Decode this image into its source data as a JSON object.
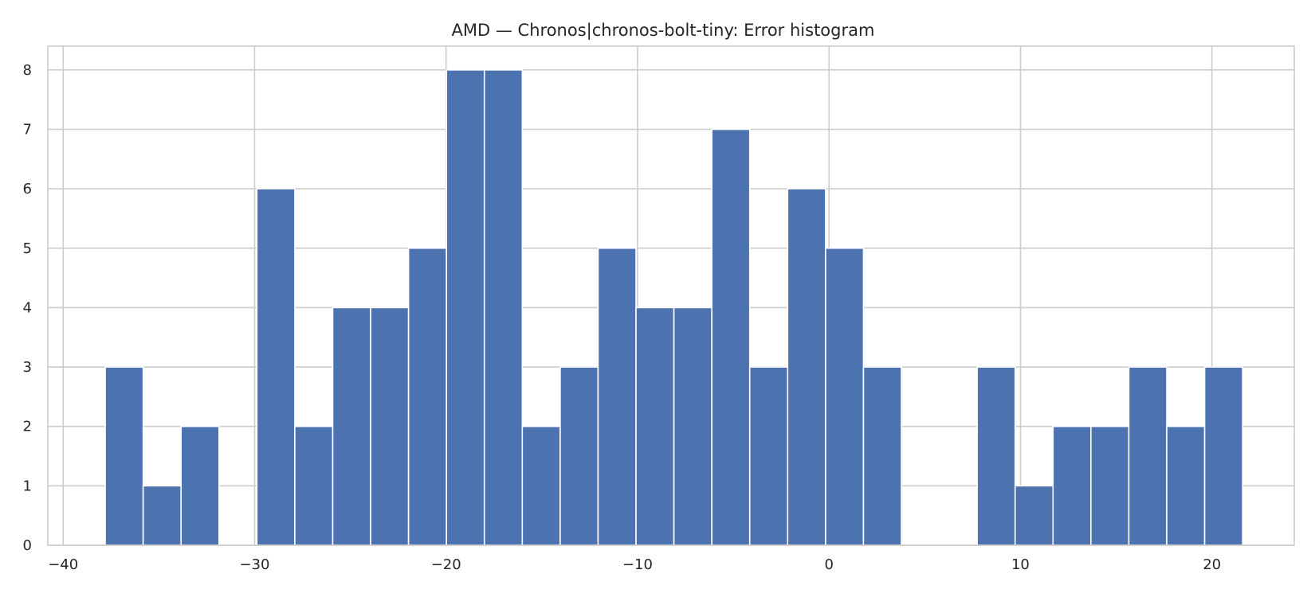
{
  "chart_data": {
    "type": "bar",
    "title": "AMD — Chronos|chronos-bolt-tiny: Error histogram",
    "xlabel": "",
    "ylabel": "",
    "xlim": [
      -40.8,
      24.3
    ],
    "ylim": [
      0,
      8.4
    ],
    "x_ticks": [
      -40,
      -30,
      -20,
      -10,
      0,
      10,
      20
    ],
    "x_tick_labels": [
      "−40",
      "−30",
      "−20",
      "−10",
      "0",
      "10",
      "20"
    ],
    "y_ticks": [
      0,
      1,
      2,
      3,
      4,
      5,
      6,
      7,
      8
    ],
    "y_tick_labels": [
      "0",
      "1",
      "2",
      "3",
      "4",
      "5",
      "6",
      "7",
      "8"
    ],
    "bin_start": -37.8,
    "bin_width": 1.98,
    "bin_counts": [
      3,
      1,
      2,
      0,
      6,
      2,
      4,
      4,
      5,
      8,
      8,
      2,
      3,
      5,
      4,
      4,
      7,
      3,
      6,
      5,
      3,
      0,
      0,
      3,
      1,
      2,
      2,
      3,
      2,
      3
    ],
    "grid": true,
    "legend": "none",
    "colors": {
      "bar": "#4c72b0",
      "grid": "#cccccc",
      "frame": "#cccccc",
      "background": "#ffffff"
    }
  }
}
